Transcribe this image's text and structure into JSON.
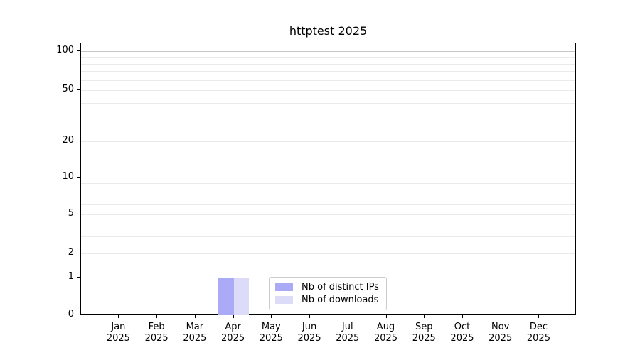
{
  "chart_data": {
    "type": "bar",
    "title": "httptest 2025",
    "categories": [
      "Jan",
      "Feb",
      "Mar",
      "Apr",
      "May",
      "Jun",
      "Jul",
      "Aug",
      "Sep",
      "Oct",
      "Nov",
      "Dec"
    ],
    "year_label": "2025",
    "series": [
      {
        "name": "Nb of distinct IPs",
        "color": "#aaaaf6",
        "values": [
          0,
          0,
          0,
          1,
          0,
          0,
          0,
          0,
          0,
          0,
          0,
          0
        ]
      },
      {
        "name": "Nb of downloads",
        "color": "#dcdcf9",
        "values": [
          0,
          0,
          0,
          1,
          0,
          0,
          0,
          0,
          0,
          0,
          0,
          0
        ]
      }
    ],
    "xlabel": "",
    "ylabel": "",
    "yticks": [
      100,
      50,
      20,
      10,
      5,
      2,
      1,
      0
    ],
    "yaxis_scale": "log-like (log above 1, linear segment 0-1)",
    "ylim": [
      0,
      115
    ],
    "grid": "horizontal major and minor gridlines on",
    "legend_position": "inside plot, lower center",
    "colors": {
      "axis": "#000000",
      "grid_major": "#c6c6c6",
      "grid_minor": "#eaeaea",
      "legend_border": "#cccccc",
      "background": "#ffffff"
    }
  }
}
